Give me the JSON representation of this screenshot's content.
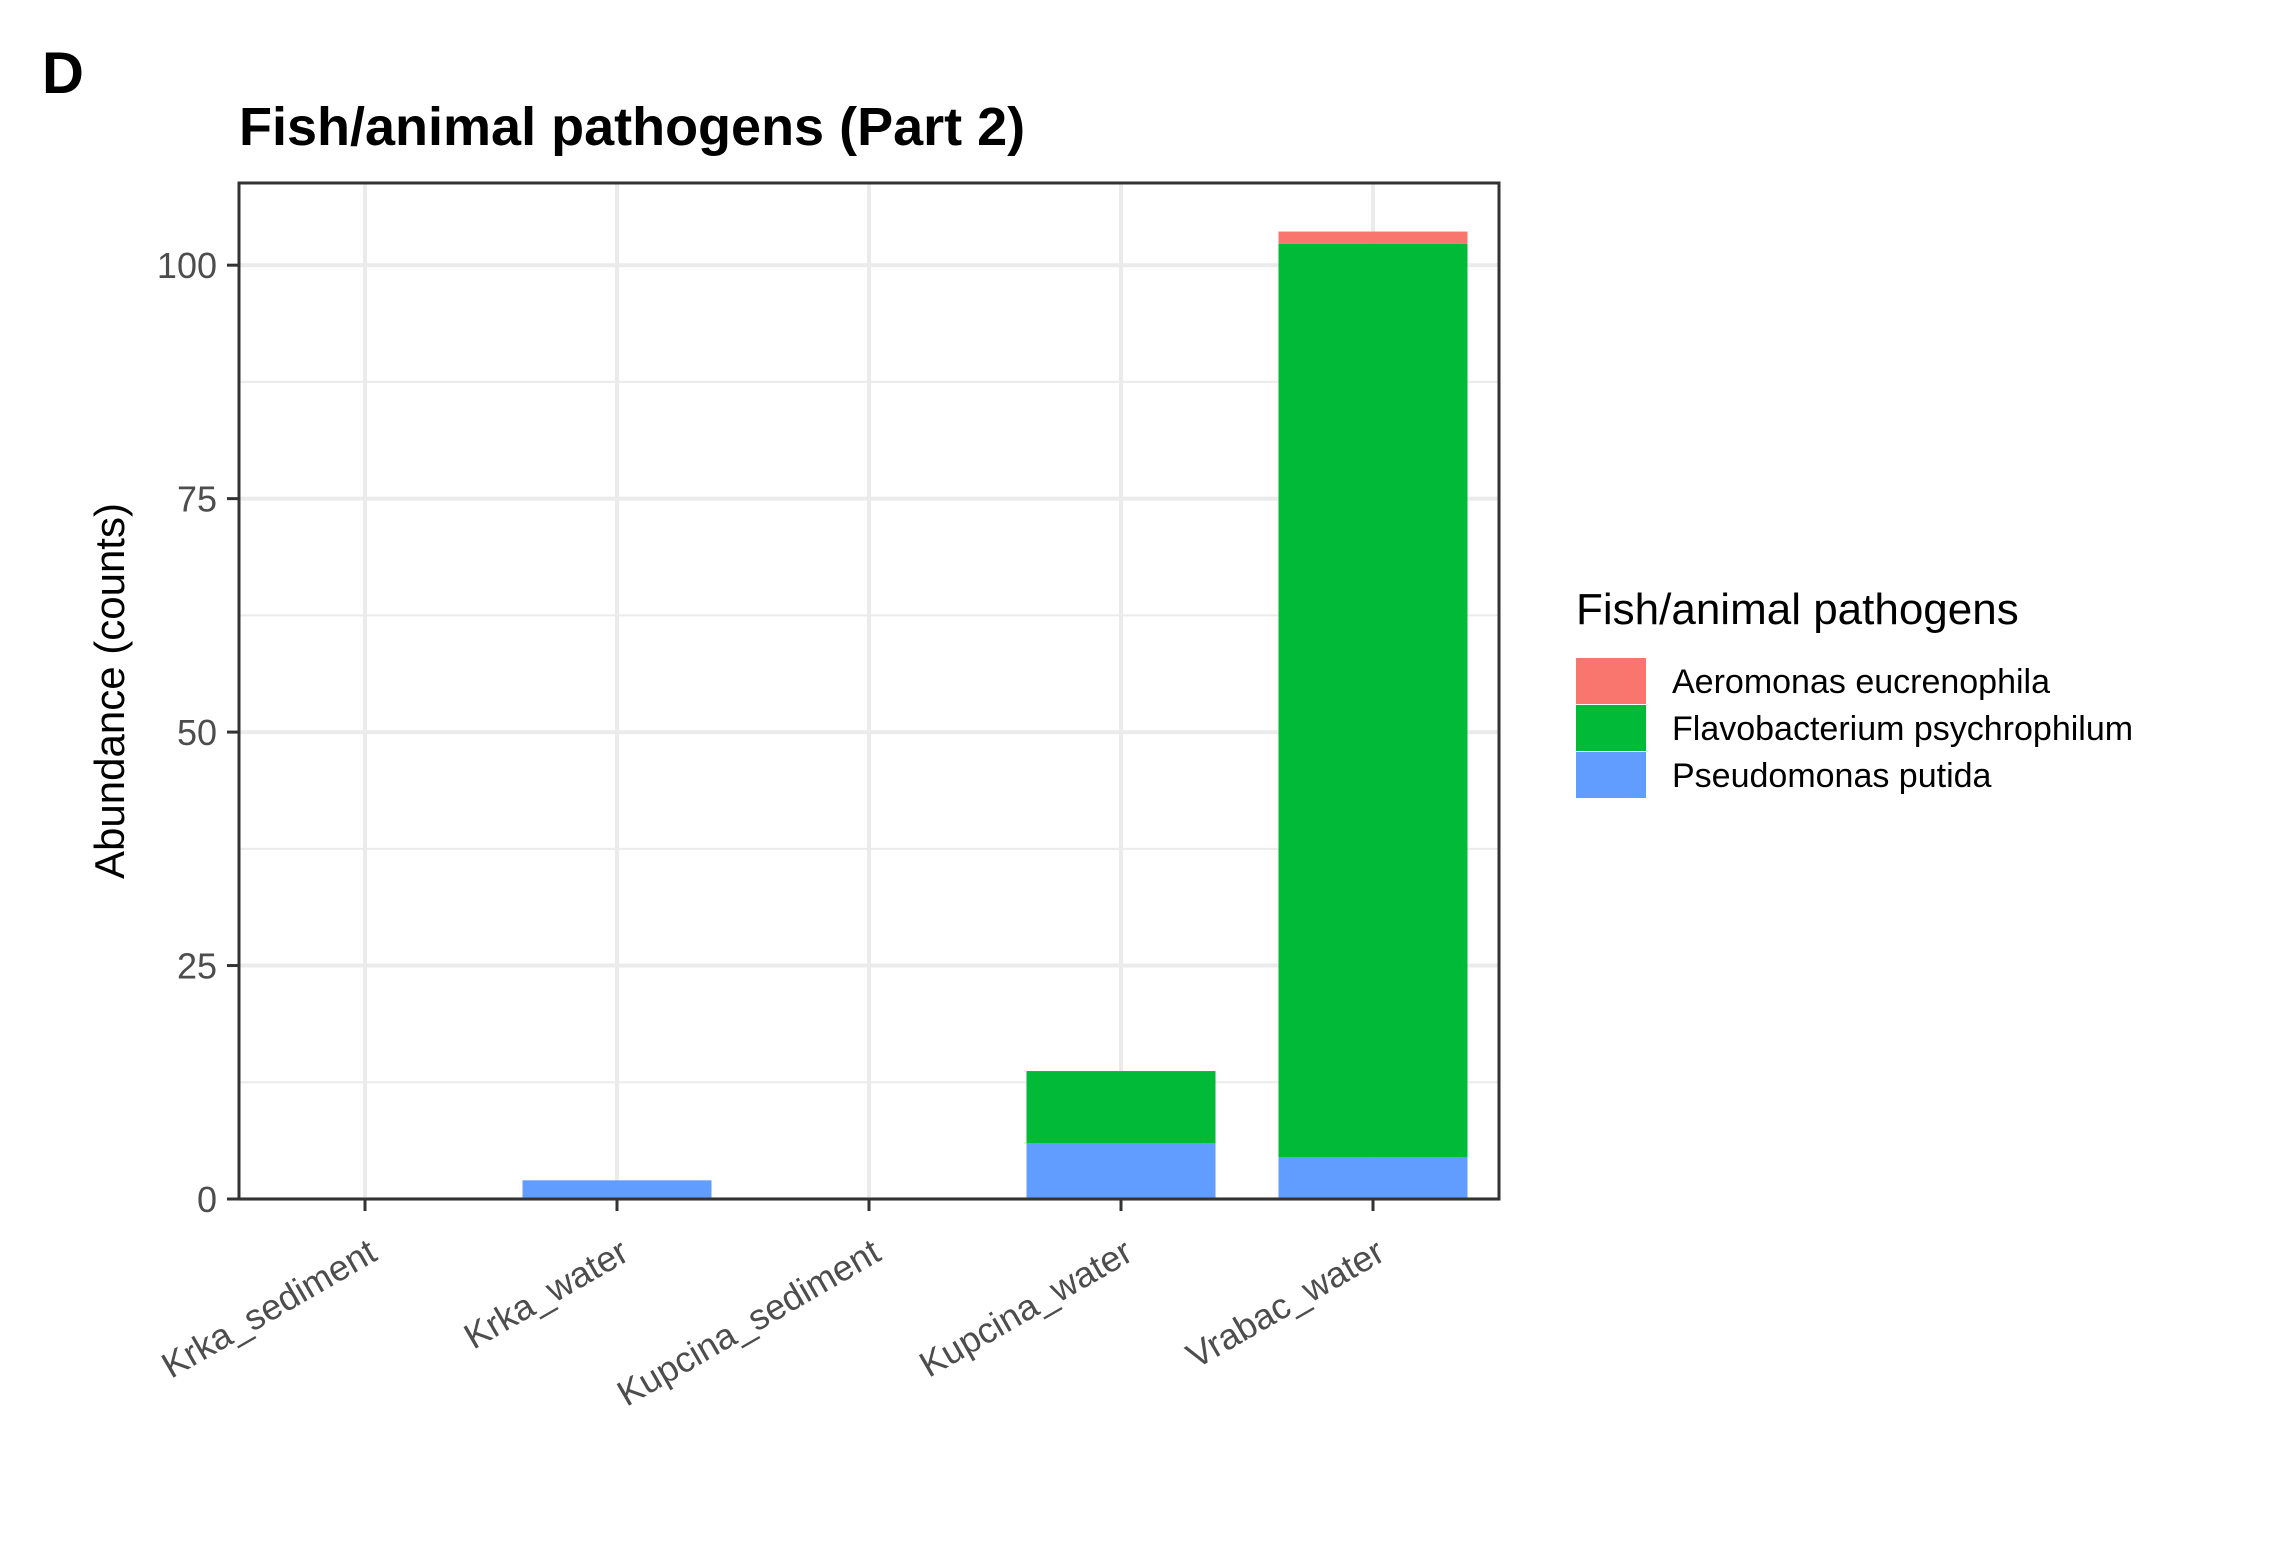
{
  "panel_label": "D",
  "chart_data": {
    "type": "bar",
    "stacked": true,
    "title": "Fish/animal pathogens (Part 2)",
    "xlabel": "",
    "ylabel": "Abundance (counts)",
    "categories": [
      "Krka_sediment",
      "Krka_water",
      "Kupcina_sediment",
      "Kupcina_water",
      "Vrabac_water"
    ],
    "series": [
      {
        "name": "Pseudomonas putida",
        "color": "#619CFF",
        "values": [
          0,
          2,
          0,
          6,
          4.5
        ]
      },
      {
        "name": "Flavobacterium psychrophilum",
        "color": "#00BA38",
        "values": [
          0,
          0,
          0,
          7.7,
          97.8
        ]
      },
      {
        "name": "Aeromonas eucrenophila",
        "color": "#F8766D",
        "values": [
          0,
          0,
          0,
          0,
          1.3
        ]
      }
    ],
    "ylim": [
      0,
      108.8
    ],
    "yticks": [
      0,
      25,
      50,
      75,
      100
    ],
    "grid": true,
    "legend": {
      "title": "Fish/animal pathogens",
      "placement": "right",
      "order": [
        "Aeromonas eucrenophila",
        "Flavobacterium psychrophilum",
        "Pseudomonas putida"
      ]
    }
  }
}
